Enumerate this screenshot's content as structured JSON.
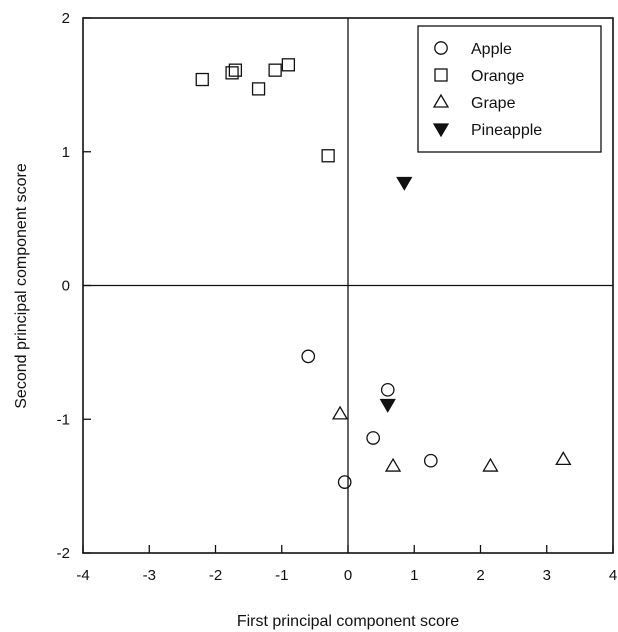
{
  "chart_data": {
    "type": "scatter",
    "xlabel": "First principal component score",
    "ylabel": "Second principal component score",
    "xlim": [
      -4,
      4
    ],
    "ylim": [
      -2,
      2
    ],
    "xticks": [
      "-4",
      "-3",
      "-2",
      "-1",
      "0",
      "1",
      "2",
      "3",
      "4"
    ],
    "yticks": [
      "-2",
      "-1",
      "0",
      "1",
      "2"
    ],
    "zero_lines": true,
    "grid": false,
    "legend_position": "top-right",
    "series": [
      {
        "name": "Apple",
        "marker": "circle-open",
        "points": [
          [
            -0.6,
            -0.53
          ],
          [
            0.6,
            -0.78
          ],
          [
            0.38,
            -1.14
          ],
          [
            1.25,
            -1.31
          ],
          [
            -0.05,
            -1.47
          ]
        ]
      },
      {
        "name": "Orange",
        "marker": "square-open",
        "points": [
          [
            -2.2,
            1.54
          ],
          [
            -1.75,
            1.59
          ],
          [
            -1.7,
            1.61
          ],
          [
            -1.35,
            1.47
          ],
          [
            -1.1,
            1.61
          ],
          [
            -0.9,
            1.65
          ],
          [
            -0.3,
            0.97
          ]
        ]
      },
      {
        "name": "Grape",
        "marker": "triangle-up-open",
        "points": [
          [
            -0.12,
            -0.96
          ],
          [
            0.68,
            -1.35
          ],
          [
            2.15,
            -1.35
          ],
          [
            3.25,
            -1.3
          ]
        ]
      },
      {
        "name": "Pineapple",
        "marker": "triangle-down-filled",
        "points": [
          [
            0.85,
            0.77
          ],
          [
            0.6,
            -0.89
          ]
        ]
      }
    ]
  }
}
